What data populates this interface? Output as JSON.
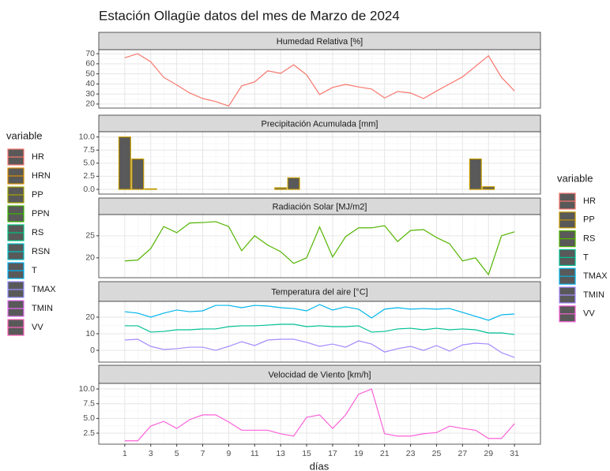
{
  "title": "Estación Ollagüe datos del mes de Marzo de 2024",
  "x_label": "días",
  "legends": [
    {
      "title": "variable",
      "items": [
        {
          "name": "HR",
          "color": "#F8766D"
        },
        {
          "name": "HRN",
          "color": "#D89000"
        },
        {
          "name": "PP",
          "color": "#A3A500"
        },
        {
          "name": "PPN",
          "color": "#39B600"
        },
        {
          "name": "RS",
          "color": "#00BF7D"
        },
        {
          "name": "RSN",
          "color": "#00BFC4"
        },
        {
          "name": "T",
          "color": "#00B0F6"
        },
        {
          "name": "TMAX",
          "color": "#9590FF"
        },
        {
          "name": "TMIN",
          "color": "#E76BF3"
        },
        {
          "name": "VV",
          "color": "#FF62BC"
        }
      ]
    },
    {
      "title": "variable"
    }
  ],
  "chart_data": [
    {
      "type": "line",
      "title": "Humedad Relativa [%]",
      "x": [
        1,
        2,
        3,
        4,
        5,
        6,
        7,
        8,
        9,
        10,
        11,
        12,
        13,
        14,
        15,
        16,
        17,
        18,
        19,
        20,
        21,
        22,
        23,
        24,
        25,
        26,
        27,
        28,
        29,
        30,
        31
      ],
      "xlim": [
        -1,
        33
      ],
      "xticks": [
        1,
        3,
        5,
        7,
        9,
        11,
        13,
        15,
        17,
        19,
        21,
        23,
        25,
        27,
        29,
        31
      ],
      "ylim": [
        16,
        74
      ],
      "yticks": [
        20,
        30,
        40,
        50,
        60,
        70
      ],
      "grid": true,
      "series": [
        {
          "name": "HR",
          "color": "#F8766D",
          "values": [
            66,
            70,
            62,
            46.5,
            39,
            31,
            25.5,
            22.5,
            18,
            38,
            42,
            53,
            50.5,
            59,
            49,
            29.5,
            36.5,
            39.5,
            37,
            35,
            26,
            32.5,
            31,
            25.5,
            33,
            40,
            47,
            57.5,
            68,
            46.5,
            33
          ]
        }
      ]
    },
    {
      "type": "bar",
      "title": "Precipitación Acumulada [mm]",
      "x": [
        1,
        2,
        3,
        4,
        5,
        6,
        7,
        8,
        9,
        10,
        11,
        12,
        13,
        14,
        15,
        16,
        17,
        18,
        19,
        20,
        21,
        22,
        23,
        24,
        25,
        26,
        27,
        28,
        29,
        30,
        31
      ],
      "xlim": [
        -1,
        33
      ],
      "xticks": [
        1,
        3,
        5,
        7,
        9,
        11,
        13,
        15,
        17,
        19,
        21,
        23,
        25,
        27,
        29,
        31
      ],
      "ylim": [
        -0.9,
        11
      ],
      "yticks": [
        {
          "value": 0,
          "label": "0.0"
        },
        2.5,
        {
          "value": 5,
          "label": "5.0"
        },
        7.5,
        {
          "value": 10,
          "label": "10.0"
        }
      ],
      "grid": true,
      "series": [
        {
          "name": "PP",
          "color": "#C49A00",
          "fill": "#595959",
          "values": [
            10,
            5.8,
            0.1,
            0,
            0,
            0,
            0,
            0,
            0,
            0,
            0,
            0,
            0.3,
            2.2,
            0,
            0,
            0,
            0,
            0,
            0,
            0,
            0,
            0,
            0,
            0,
            0,
            0,
            5.8,
            0.5,
            0,
            0
          ]
        }
      ]
    },
    {
      "type": "line",
      "title": "Radiación Solar [MJ/m2]",
      "x": [
        1,
        2,
        3,
        4,
        5,
        6,
        7,
        8,
        9,
        10,
        11,
        12,
        13,
        14,
        15,
        16,
        17,
        18,
        19,
        20,
        21,
        22,
        23,
        24,
        25,
        26,
        27,
        28,
        29,
        30,
        31
      ],
      "xlim": [
        -1,
        33
      ],
      "xticks": [
        1,
        3,
        5,
        7,
        9,
        11,
        13,
        15,
        17,
        19,
        21,
        23,
        25,
        27,
        29,
        31
      ],
      "ylim": [
        15.5,
        29.8
      ],
      "yticks": [
        20,
        25
      ],
      "grid": true,
      "series": [
        {
          "name": "RS",
          "color": "#53B400",
          "values": [
            19.3,
            19.5,
            22.1,
            27.1,
            25.7,
            27.9,
            28,
            28.2,
            27.1,
            21.6,
            25,
            22.9,
            21.4,
            18.75,
            20,
            27,
            20.2,
            24.8,
            26.8,
            26.8,
            27.3,
            23.7,
            26.2,
            26.4,
            24.6,
            23.2,
            19.3,
            20,
            16.2,
            25,
            25.9
          ]
        }
      ]
    },
    {
      "type": "line",
      "title": "Temperatura del aire [°C]",
      "x": [
        1,
        2,
        3,
        4,
        5,
        6,
        7,
        8,
        9,
        10,
        11,
        12,
        13,
        14,
        15,
        16,
        17,
        18,
        19,
        20,
        21,
        22,
        23,
        24,
        25,
        26,
        27,
        28,
        29,
        30,
        31
      ],
      "xlim": [
        -1,
        33
      ],
      "xticks": [
        1,
        3,
        5,
        7,
        9,
        11,
        13,
        15,
        17,
        19,
        21,
        23,
        25,
        27,
        29,
        31
      ],
      "ylim": [
        -7.1,
        29.5
      ],
      "yticks": [
        0,
        10,
        20
      ],
      "grid": true,
      "series": [
        {
          "name": "T",
          "color": "#00C094",
          "values": [
            14.8,
            14.8,
            11,
            11.4,
            12.4,
            12.4,
            12.9,
            12.9,
            14.3,
            14.8,
            14.8,
            15.2,
            15.7,
            15.7,
            14.3,
            14.8,
            14.3,
            14.3,
            14.8,
            11,
            11.4,
            12.9,
            13.3,
            12.4,
            13.3,
            12.4,
            12.9,
            12.4,
            10.5,
            10.5,
            9.5
          ]
        },
        {
          "name": "TMAX",
          "color": "#00B6EB",
          "values": [
            23.3,
            22.4,
            20,
            22.4,
            24.3,
            23.3,
            23.8,
            27.1,
            27.1,
            25.7,
            27.1,
            26.7,
            25.7,
            25.2,
            23.8,
            27.6,
            24.3,
            26.2,
            24.8,
            19.5,
            24.8,
            25.7,
            24.8,
            25.2,
            24.8,
            25.2,
            22.9,
            20.5,
            18.1,
            21.4,
            21.9
          ]
        },
        {
          "name": "TMIN",
          "color": "#A58AFF",
          "values": [
            6.2,
            6.7,
            2.4,
            0.5,
            1,
            1.9,
            1.9,
            0,
            2.4,
            5.2,
            2.9,
            6.2,
            6.7,
            6.7,
            4.8,
            2.4,
            3.8,
            1.9,
            5.7,
            3.8,
            -1,
            1,
            2.4,
            0,
            2.9,
            -0.5,
            3.3,
            4.3,
            3.8,
            -1.4,
            -4.3
          ]
        }
      ]
    },
    {
      "type": "line",
      "title": "Velocidad de Viento [km/h]",
      "x": [
        1,
        2,
        3,
        4,
        5,
        6,
        7,
        8,
        9,
        10,
        11,
        12,
        13,
        14,
        15,
        16,
        17,
        18,
        19,
        20,
        21,
        22,
        23,
        24,
        25,
        26,
        27,
        28,
        29,
        30,
        31
      ],
      "xlim": [
        -1,
        33
      ],
      "xticks": [
        1,
        3,
        5,
        7,
        9,
        11,
        13,
        15,
        17,
        19,
        21,
        23,
        25,
        27,
        29,
        31
      ],
      "ylim": [
        0.63,
        10.94
      ],
      "yticks": [
        2.5,
        {
          "value": 5,
          "label": "5.0"
        },
        7.5,
        {
          "value": 10,
          "label": "10.0"
        }
      ],
      "grid": true,
      "series": [
        {
          "name": "VV",
          "color": "#FB61D7",
          "values": [
            1.2,
            1.2,
            3.7,
            4.5,
            3.3,
            4.8,
            5.6,
            5.6,
            4.4,
            3,
            3,
            3,
            2.4,
            2,
            5.2,
            5.6,
            3.3,
            5.6,
            9.1,
            10,
            2.4,
            2,
            2,
            2.4,
            2.6,
            3.7,
            3.3,
            3,
            1.6,
            1.6,
            4.1
          ]
        }
      ]
    }
  ]
}
